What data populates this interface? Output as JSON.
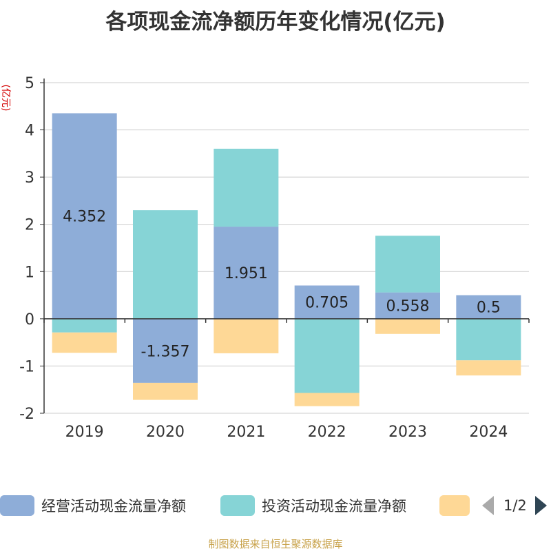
{
  "title": "各项现金流净额历年变化情况(亿元)",
  "footer": "制图数据来自恒生聚源数据库",
  "legend": {
    "items": [
      {
        "label": "经营活动现金流量净额",
        "color": "#8eadd8"
      },
      {
        "label": "投资活动现金流量净额",
        "color": "#86d4d6"
      },
      {
        "label": "",
        "color": "#fed896"
      }
    ],
    "page_indicator": "1/2"
  },
  "chart_data": {
    "type": "bar",
    "stacked": true,
    "title": "各项现金流净额历年变化情况(亿元)",
    "ylabel": "(亿元)",
    "xlabel": "",
    "categories": [
      "2019",
      "2020",
      "2021",
      "2022",
      "2023",
      "2024"
    ],
    "ylim": [
      -2,
      5
    ],
    "yticks": [
      -2,
      -1,
      0,
      1,
      2,
      3,
      4,
      5
    ],
    "grid": true,
    "legend_position": "bottom",
    "series": [
      {
        "name": "经营活动现金流量净额",
        "color": "#8eadd8",
        "values": [
          4.352,
          -1.357,
          1.951,
          0.705,
          0.558,
          0.5
        ],
        "labels": [
          "4.352",
          "-1.357",
          "1.951",
          "0.705",
          "0.558",
          "0.5"
        ]
      },
      {
        "name": "投资活动现金流量净额",
        "color": "#86d4d6",
        "values": [
          -0.29,
          2.3,
          1.65,
          -1.57,
          1.2,
          -0.88
        ]
      },
      {
        "name": "",
        "color": "#fed896",
        "values": [
          -0.43,
          -0.36,
          -0.73,
          -0.28,
          -0.32,
          -0.32
        ]
      }
    ]
  }
}
